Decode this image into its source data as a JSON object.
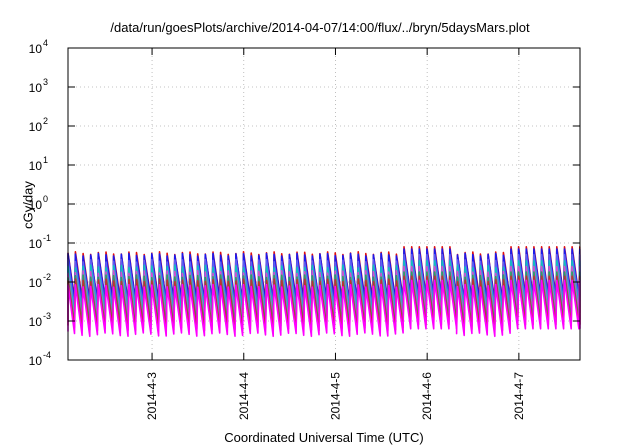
{
  "chart_data": {
    "type": "line",
    "title": "/data/run/goesPlots/archive/2014-04-07/14:00/flux/../bryn/5daysMars.plot",
    "xlabel": "Coordinated Universal Time (UTC)",
    "ylabel": "cGy/day",
    "yscale": "log",
    "ylim": [
      0.0001,
      10000
    ],
    "xlim": [
      "2014-04-02 02:00",
      "2014-04-07 16:00"
    ],
    "y_ticks": [
      {
        "base": "10",
        "exp": "4"
      },
      {
        "base": "10",
        "exp": "3"
      },
      {
        "base": "10",
        "exp": "2"
      },
      {
        "base": "10",
        "exp": "1"
      },
      {
        "base": "10",
        "exp": "0"
      },
      {
        "base": "10",
        "exp": "-1"
      },
      {
        "base": "10",
        "exp": "-2"
      },
      {
        "base": "10",
        "exp": "-3"
      },
      {
        "base": "10",
        "exp": "-4"
      }
    ],
    "x_ticks": [
      "2014-4-3",
      "2014-4-4",
      "2014-4-5",
      "2014-4-6",
      "2014-4-7"
    ],
    "grid": true,
    "cycles_per_day": 12,
    "series": [
      {
        "color": "#e01010",
        "peak": [
          0.055,
          0.08
        ],
        "trough": [
          0.004,
          0.005
        ]
      },
      {
        "color": "#1a1aee",
        "peak": [
          0.05,
          0.07
        ],
        "trough": [
          0.0035,
          0.0045
        ]
      },
      {
        "color": "#6060f0",
        "peak": [
          0.035,
          0.05
        ],
        "trough": [
          0.0025,
          0.0035
        ]
      },
      {
        "color": "#10c0c0",
        "peak": [
          0.025,
          0.035
        ],
        "trough": [
          0.0018,
          0.0025
        ]
      },
      {
        "color": "#d050d0",
        "peak": [
          0.018,
          0.025
        ],
        "trough": [
          0.0012,
          0.0018
        ]
      },
      {
        "color": "#2ea062",
        "peak": [
          0.014,
          0.018
        ],
        "trough": [
          0.0009,
          0.0012
        ]
      },
      {
        "color": "#c03030",
        "peak": [
          0.011,
          0.014
        ],
        "trough": [
          0.0007,
          0.0009
        ]
      },
      {
        "color": "#ff00ff",
        "peak": [
          0.008,
          0.011
        ],
        "trough": [
          0.0005,
          0.0007
        ]
      }
    ]
  }
}
